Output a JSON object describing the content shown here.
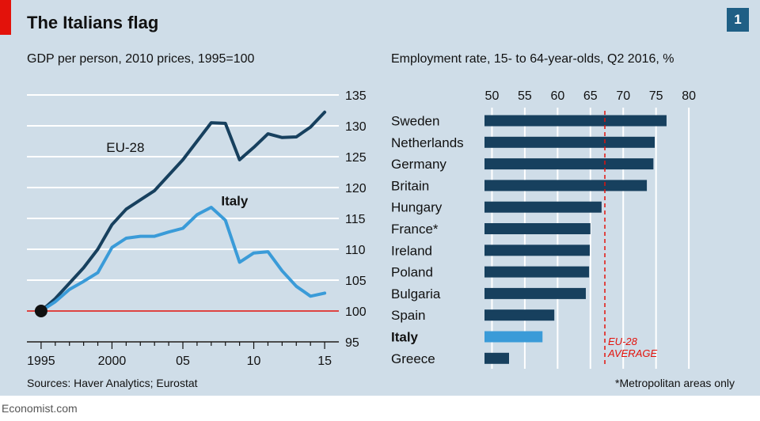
{
  "header": {
    "title": "The Italians flag",
    "badge": "1"
  },
  "footer": {
    "source": "Sources: Haver Analytics; Eurostat",
    "footnote": "*Metropolitan areas only",
    "brand": "Economist.com"
  },
  "colors": {
    "panel_bg": "#cfdde8",
    "eu_line": "#17405e",
    "italy_line": "#3a9bd8",
    "bar": "#17405e",
    "italy_bar": "#3a9bd8",
    "baseline": "#e3120b",
    "average": "#e3120b"
  },
  "chart_data": [
    {
      "type": "line",
      "title": "GDP per person, 2010 prices, 1995=100",
      "x_tick_labels": [
        "1995",
        "2000",
        "05",
        "10",
        "15"
      ],
      "x_ticks": [
        1995,
        2000,
        2005,
        2010,
        2015
      ],
      "xlim": [
        1994,
        2016
      ],
      "ylim": [
        95,
        135
      ],
      "y_ticks": [
        95,
        100,
        105,
        110,
        115,
        120,
        125,
        130,
        135
      ],
      "y_axis_side": "right",
      "grid": true,
      "baseline": 100,
      "series": [
        {
          "name": "EU-28",
          "x": [
            1995,
            1996,
            1997,
            1998,
            1999,
            2000,
            2001,
            2002,
            2003,
            2004,
            2005,
            2006,
            2007,
            2008,
            2009,
            2010,
            2011,
            2012,
            2013,
            2014,
            2015
          ],
          "values": [
            100,
            102,
            104.5,
            107,
            110,
            114,
            116.5,
            118,
            119.5,
            122,
            124.5,
            127.5,
            130.5,
            130.4,
            124.5,
            126.5,
            128.7,
            128.1,
            128.2,
            129.8,
            132.2
          ]
        },
        {
          "name": "Italy",
          "x": [
            1995,
            1996,
            1997,
            1998,
            1999,
            2000,
            2001,
            2002,
            2003,
            2004,
            2005,
            2006,
            2007,
            2008,
            2009,
            2010,
            2011,
            2012,
            2013,
            2014,
            2015
          ],
          "values": [
            100,
            101.5,
            103.5,
            104.8,
            106.2,
            110.3,
            111.8,
            112.1,
            112.1,
            112.8,
            113.4,
            115.6,
            116.8,
            114.7,
            107.9,
            109.4,
            109.6,
            106.5,
            104,
            102.4,
            102.9
          ]
        }
      ]
    },
    {
      "type": "bar",
      "orientation": "horizontal",
      "title": "Employment rate, 15- to 64-year-olds, Q2 2016, %",
      "categories": [
        "Sweden",
        "Netherlands",
        "Germany",
        "Britain",
        "Hungary",
        "France*",
        "Ireland",
        "Poland",
        "Bulgaria",
        "Spain",
        "Italy",
        "Greece"
      ],
      "values": [
        76.6,
        74.8,
        74.6,
        73.6,
        66.7,
        65,
        64.9,
        64.8,
        64.3,
        59.5,
        57.7,
        52.6
      ],
      "highlight": "Italy",
      "xlim": [
        45,
        83
      ],
      "x_ticks": [
        50,
        55,
        60,
        65,
        70,
        75,
        80
      ],
      "x_axis_side": "top",
      "grid": true,
      "reference_line": {
        "value": 67.2,
        "label_lines": [
          "EU-28",
          "AVERAGE"
        ]
      }
    }
  ]
}
